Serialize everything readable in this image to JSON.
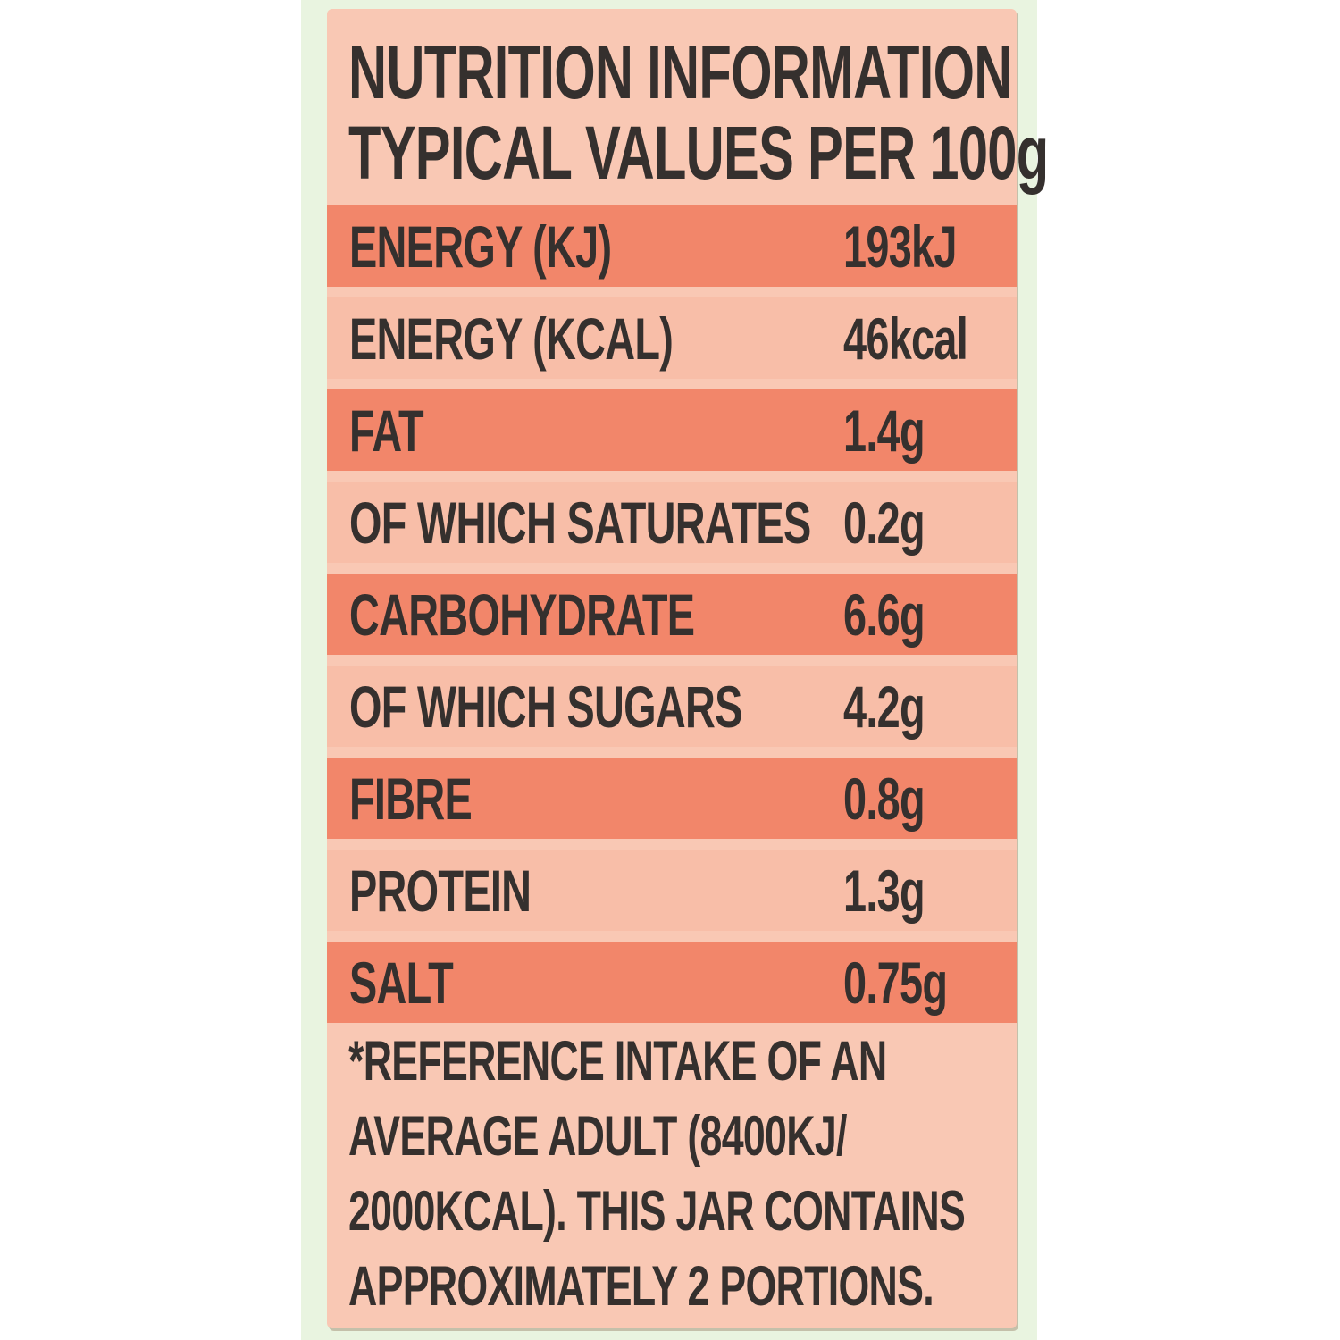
{
  "label": {
    "title_line1": "NUTRITION INFORMATION",
    "title_line2": "TYPICAL VALUES PER 100g",
    "table": {
      "rows": [
        {
          "name": "ENERGY (KJ)",
          "value": "193kJ"
        },
        {
          "name": "ENERGY (KCAL)",
          "value": "46kcal"
        },
        {
          "name": "FAT",
          "value": "1.4g"
        },
        {
          "name": "OF WHICH SATURATES",
          "value": "0.2g"
        },
        {
          "name": "CARBOHYDRATE",
          "value": "6.6g"
        },
        {
          "name": "OF WHICH SUGARS",
          "value": "4.2g"
        },
        {
          "name": "FIBRE",
          "value": "0.8g"
        },
        {
          "name": "PROTEIN",
          "value": "1.3g"
        },
        {
          "name": "SALT",
          "value": "0.75g"
        }
      ]
    },
    "footnote": {
      "line1": "*REFERENCE INTAKE OF AN",
      "line2": "AVERAGE ADULT (8400KJ/",
      "line3": "2000KCAL). THIS JAR CONTAINS",
      "line4": "APPROXIMATELY 2 PORTIONS."
    },
    "colors": {
      "panel_background": "#f9c8b4",
      "band_dark": "#f2866a",
      "band_light": "#f8bea8",
      "outer_strip": "#e9f4e0",
      "page_background": "#ffffff",
      "text": "#35302e"
    }
  }
}
